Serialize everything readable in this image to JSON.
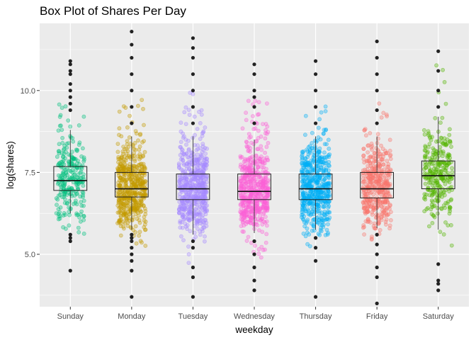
{
  "chart_data": {
    "type": "boxplot",
    "title": "Box Plot of Shares Per Day",
    "xlabel": "weekday",
    "ylabel": "log(shares)",
    "ylim": [
      3.4,
      12.05
    ],
    "yticks": [
      5.0,
      7.5,
      10.0
    ],
    "ytick_labels": [
      "5.0",
      "7.5",
      "10.0"
    ],
    "grid": true,
    "legend": "none",
    "categories": [
      "Sunday",
      "Monday",
      "Tuesday",
      "Wednesday",
      "Thursday",
      "Friday",
      "Saturday"
    ],
    "colors": [
      "#00BF7D",
      "#C49A00",
      "#A58AFF",
      "#FB61D7",
      "#00B0F6",
      "#F8766D",
      "#53B400"
    ],
    "boxes": [
      {
        "min": 6.25,
        "q1": 6.95,
        "median": 7.25,
        "q3": 7.68,
        "max": 8.8
      },
      {
        "min": 5.75,
        "q1": 6.75,
        "median": 7.0,
        "q3": 7.5,
        "max": 8.6
      },
      {
        "min": 5.6,
        "q1": 6.67,
        "median": 7.0,
        "q3": 7.45,
        "max": 8.6
      },
      {
        "min": 5.65,
        "q1": 6.67,
        "median": 6.92,
        "q3": 7.45,
        "max": 8.5
      },
      {
        "min": 5.75,
        "q1": 6.67,
        "median": 7.0,
        "q3": 7.45,
        "max": 8.6
      },
      {
        "min": 5.8,
        "q1": 6.72,
        "median": 7.0,
        "q3": 7.5,
        "max": 8.6
      },
      {
        "min": 5.75,
        "q1": 7.0,
        "median": 7.4,
        "q3": 7.85,
        "max": 9.2
      }
    ],
    "outliers": [
      [
        4.5,
        5.4,
        5.5,
        5.6,
        9.4,
        9.6,
        9.8,
        10.0,
        10.2,
        10.5,
        10.6,
        10.8,
        10.9
      ],
      [
        3.7,
        4.5,
        4.8,
        5.0,
        5.2,
        5.4,
        5.5,
        5.6,
        9.0,
        9.5,
        10.0,
        10.5,
        11.0,
        11.4,
        11.8
      ],
      [
        3.7,
        4.3,
        4.6,
        5.2,
        5.4,
        9.0,
        9.5,
        10.0,
        10.5,
        11.0,
        11.3,
        11.6
      ],
      [
        3.9,
        4.2,
        4.6,
        5.0,
        5.4,
        9.0,
        9.5,
        9.8,
        10.0,
        10.5,
        10.8
      ],
      [
        3.7,
        4.8,
        5.2,
        5.5,
        9.0,
        9.5,
        10.0,
        10.5,
        10.9
      ],
      [
        3.5,
        4.3,
        4.6,
        5.0,
        5.3,
        5.6,
        9.0,
        9.4,
        10.0,
        10.5,
        11.0,
        11.5
      ],
      [
        3.9,
        4.1,
        4.2,
        4.7,
        9.5,
        10.0,
        10.6,
        11.2
      ]
    ]
  }
}
